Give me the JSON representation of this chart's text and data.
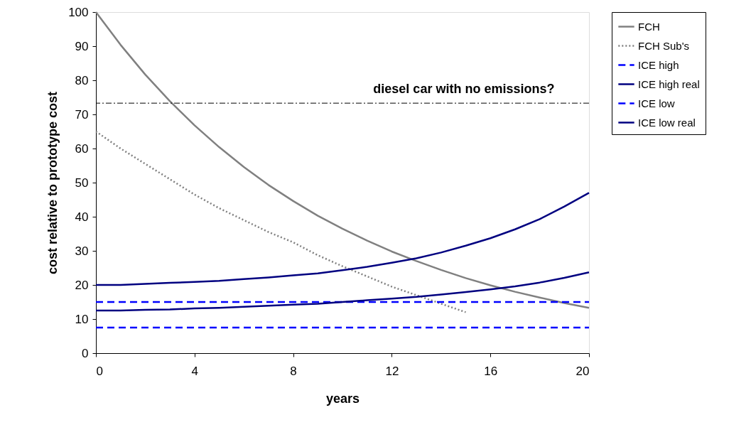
{
  "chart_data": {
    "type": "line",
    "xlabel": "years",
    "ylabel": "cost relative to prototype cost",
    "x": [
      0,
      1,
      2,
      3,
      4,
      5,
      6,
      7,
      8,
      9,
      10,
      11,
      12,
      13,
      14,
      15,
      16,
      17,
      18,
      19,
      20
    ],
    "xlim": [
      0,
      20
    ],
    "xticks": [
      0,
      4,
      8,
      12,
      16,
      20
    ],
    "ylim": [
      0,
      100
    ],
    "yticks": [
      0,
      10,
      20,
      30,
      40,
      50,
      60,
      70,
      80,
      90,
      100
    ],
    "grid": false,
    "legend": "right",
    "marker": "none",
    "series": [
      {
        "name": "FCH",
        "color": "#808080",
        "line_style": "solid",
        "values": [
          100,
          90.4,
          81.7,
          73.9,
          66.8,
          60.4,
          54.6,
          49.3,
          44.6,
          40.3,
          36.5,
          33.0,
          29.8,
          27.0,
          24.4,
          22.0,
          19.9,
          18.0,
          16.3,
          14.7,
          13.3
        ]
      },
      {
        "name": "FCH Sub's",
        "color": "#808080",
        "line_style": "dotted",
        "values": [
          65,
          60,
          55.5,
          51,
          46.5,
          42.5,
          39,
          35.5,
          32.5,
          28.7,
          25.5,
          22.5,
          19.5,
          17,
          14.5,
          12,
          null,
          null,
          null,
          null,
          null
        ]
      },
      {
        "name": "ICE high",
        "color": "#0000ff",
        "line_style": "dashed",
        "values": [
          15,
          15,
          15,
          15,
          15,
          15,
          15,
          15,
          15,
          15,
          15,
          15,
          15,
          15,
          15,
          15,
          15,
          15,
          15,
          15,
          15
        ]
      },
      {
        "name": "ICE high real",
        "color": "#000080",
        "line_style": "solid",
        "values": [
          20,
          20,
          20.3,
          20.6,
          20.9,
          21.2,
          21.7,
          22.2,
          22.8,
          23.4,
          24.3,
          25.3,
          26.5,
          27.8,
          29.5,
          31.5,
          33.7,
          36.3,
          39.3,
          43,
          47
        ]
      },
      {
        "name": "ICE low",
        "color": "#0000ff",
        "line_style": "dashed",
        "values": [
          7.5,
          7.5,
          7.5,
          7.5,
          7.5,
          7.5,
          7.5,
          7.5,
          7.5,
          7.5,
          7.5,
          7.5,
          7.5,
          7.5,
          7.5,
          7.5,
          7.5,
          7.5,
          7.5,
          7.5,
          7.5
        ]
      },
      {
        "name": "ICE low real",
        "color": "#000080",
        "line_style": "solid",
        "values": [
          12.5,
          12.5,
          12.7,
          12.8,
          13.1,
          13.3,
          13.6,
          13.9,
          14.2,
          14.5,
          15,
          15.5,
          16,
          16.5,
          17.2,
          17.9,
          18.7,
          19.6,
          20.7,
          22.1,
          23.7
        ]
      }
    ],
    "ref_lines": [
      {
        "axis": "y",
        "value": 73.3,
        "label": "diesel car with no emissions?",
        "color": "#000000",
        "line_style": "dashed"
      }
    ]
  }
}
